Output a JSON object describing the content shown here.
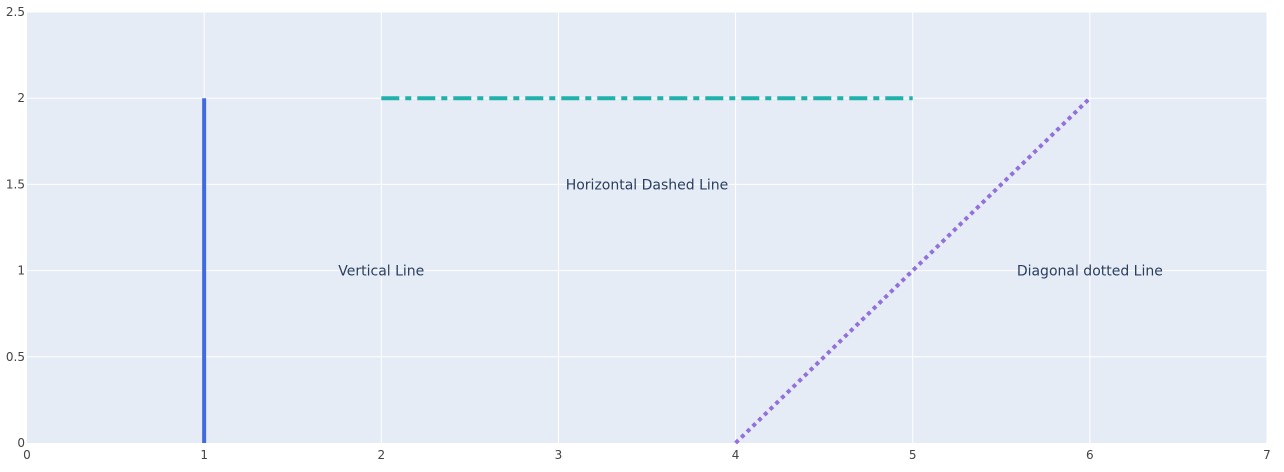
{
  "chart_data": {
    "type": "line",
    "xlim": [
      0,
      7
    ],
    "ylim": [
      0,
      2.5
    ],
    "x_ticks": [
      0,
      1,
      2,
      3,
      4,
      5,
      6,
      7
    ],
    "y_ticks": [
      0,
      0.5,
      1,
      1.5,
      2,
      2.5
    ],
    "x_tick_labels": [
      "0",
      "1",
      "2",
      "3",
      "4",
      "5",
      "6",
      "7"
    ],
    "y_tick_labels": [
      "0",
      "0.5",
      "1",
      "1.5",
      "2",
      "2.5"
    ],
    "grid": true,
    "background_color": "#E5ECF6",
    "grid_color": "#FFFFFF",
    "series": [
      {
        "x": [
          1,
          1
        ],
        "y": [
          0,
          2
        ],
        "color": "#4169E1",
        "dash": "solid"
      },
      {
        "x": [
          2,
          5
        ],
        "y": [
          2,
          2
        ],
        "color": "#20B2AA",
        "dash": "dashdot"
      },
      {
        "x": [
          4,
          6
        ],
        "y": [
          0,
          2
        ],
        "color": "#9370DB",
        "dash": "dot"
      }
    ],
    "annotations": [
      {
        "text": "Vertical Line",
        "x": 2,
        "y": 1
      },
      {
        "text": "Horizontal Dashed Line",
        "x": 3.5,
        "y": 1.5
      },
      {
        "text": "Diagonal dotted Line",
        "x": 6,
        "y": 1
      }
    ]
  }
}
